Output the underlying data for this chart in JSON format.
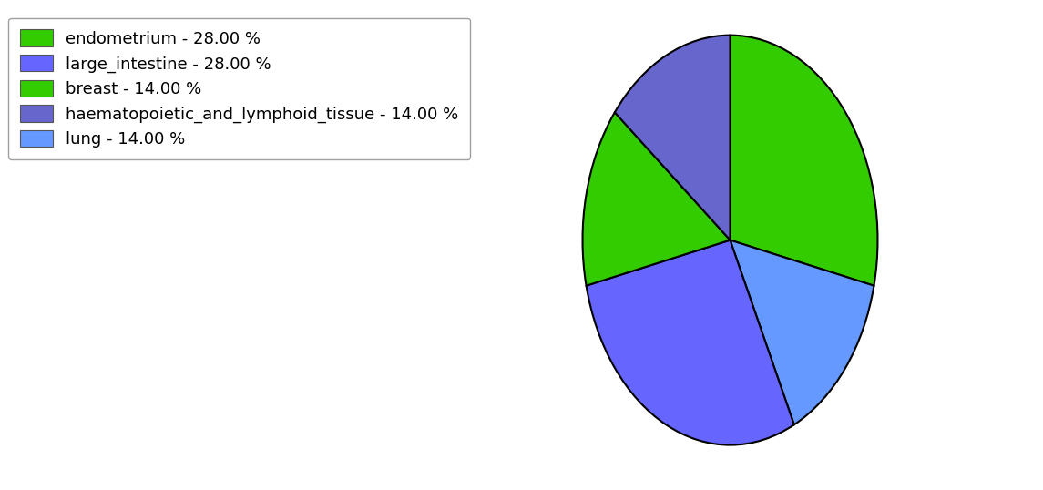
{
  "labels": [
    "endometrium",
    "lung",
    "large_intestine",
    "breast",
    "haematopoietic_and_lymphoid_tissue"
  ],
  "sizes": [
    28.0,
    14.0,
    28.0,
    14.0,
    14.0
  ],
  "colors": [
    "#33cc00",
    "#6699ff",
    "#6666ff",
    "#33cc00",
    "#6666cc"
  ],
  "legend_labels": [
    "endometrium - 28.00 %",
    "large_intestine - 28.00 %",
    "breast - 14.00 %",
    "haematopoietic_and_lymphoid_tissue - 14.00 %",
    "lung - 14.00 %"
  ],
  "legend_colors": [
    "#33cc00",
    "#6666ff",
    "#33cc00",
    "#6666cc",
    "#6699ff"
  ],
  "startangle": 90,
  "figsize": [
    11.45,
    5.38
  ],
  "dpi": 100,
  "edgecolor": "#000000",
  "linewidth": 1.5
}
